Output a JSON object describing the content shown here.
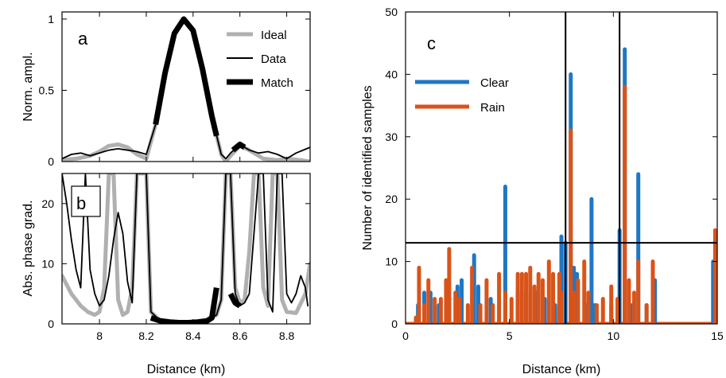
{
  "chart_data": [
    {
      "panel_label": "a",
      "type": "line",
      "xlabel": "",
      "ylabel": "Norm. ampl.",
      "xlim": [
        7.84,
        8.9
      ],
      "ylim": [
        0,
        1.05
      ],
      "xticks": [
        8,
        8.2,
        8.4,
        8.6,
        8.8
      ],
      "xtick_labels": [
        "",
        "",
        "",
        "",
        ""
      ],
      "yticks": [
        0,
        0.5,
        1
      ],
      "ytick_labels": [
        "0",
        "0.5",
        "1"
      ],
      "legend_position": "top-right",
      "series": [
        {
          "name": "Ideal",
          "color": "#b0b0b0",
          "style": "thick",
          "x": [
            7.84,
            7.9,
            7.96,
            8.0,
            8.04,
            8.08,
            8.12,
            8.16,
            8.2,
            8.24,
            8.28,
            8.32,
            8.36,
            8.4,
            8.44,
            8.48,
            8.52,
            8.54,
            8.56,
            8.6,
            8.64,
            8.7,
            8.76,
            8.8,
            8.86,
            8.9
          ],
          "y": [
            0.01,
            0.02,
            0.04,
            0.07,
            0.11,
            0.12,
            0.1,
            0.05,
            0.02,
            0.26,
            0.62,
            0.9,
            1.0,
            0.92,
            0.65,
            0.32,
            0.05,
            0.0,
            0.04,
            0.11,
            0.08,
            0.02,
            0.01,
            0.02,
            0.01,
            0.0
          ]
        },
        {
          "name": "Data",
          "color": "#000000",
          "style": "thin",
          "x": [
            7.84,
            7.88,
            7.92,
            7.96,
            8.0,
            8.04,
            8.08,
            8.12,
            8.16,
            8.2,
            8.24,
            8.28,
            8.32,
            8.36,
            8.4,
            8.44,
            8.48,
            8.52,
            8.54,
            8.56,
            8.6,
            8.64,
            8.68,
            8.72,
            8.76,
            8.8,
            8.84,
            8.9
          ],
          "y": [
            0.02,
            0.05,
            0.06,
            0.04,
            0.06,
            0.08,
            0.09,
            0.08,
            0.07,
            0.05,
            0.26,
            0.62,
            0.9,
            1.0,
            0.92,
            0.65,
            0.32,
            0.05,
            0.02,
            0.06,
            0.12,
            0.08,
            0.06,
            0.07,
            0.05,
            0.02,
            0.06,
            0.1
          ]
        },
        {
          "name": "Match",
          "color": "#000000",
          "style": "bold",
          "segments": [
            {
              "x": [
                8.24,
                8.28,
                8.32,
                8.36,
                8.4,
                8.44,
                8.48,
                8.5
              ],
              "y": [
                0.26,
                0.62,
                0.9,
                1.0,
                0.92,
                0.65,
                0.32,
                0.18
              ]
            },
            {
              "x": [
                8.57,
                8.6,
                8.62
              ],
              "y": [
                0.08,
                0.12,
                0.1
              ]
            }
          ]
        }
      ]
    },
    {
      "panel_label": "b",
      "type": "line",
      "xlabel": "Distance (km)",
      "ylabel": "Abs. phase grad.",
      "xlim": [
        7.84,
        8.9
      ],
      "ylim": [
        0,
        25
      ],
      "xticks": [
        8,
        8.2,
        8.4,
        8.6,
        8.8
      ],
      "xtick_labels": [
        "8",
        "8.2",
        "8.4",
        "8.6",
        "8.8"
      ],
      "yticks": [
        0,
        10,
        20
      ],
      "ytick_labels": [
        "0",
        "10",
        "20"
      ],
      "series": [
        {
          "name": "Ideal",
          "color": "#b0b0b0",
          "style": "thick",
          "x": [
            7.84,
            7.88,
            7.92,
            7.95,
            7.98,
            8.0,
            8.02,
            8.04,
            8.06,
            8.08,
            8.1,
            8.12,
            8.14,
            8.16,
            8.18,
            8.2,
            8.22,
            8.26,
            8.3,
            8.34,
            8.38,
            8.42,
            8.46,
            8.5,
            8.52,
            8.54,
            8.56,
            8.58,
            8.6,
            8.62,
            8.64,
            8.66,
            8.68,
            8.7,
            8.72,
            8.74,
            8.76,
            8.78,
            8.8,
            8.84,
            8.88,
            8.9
          ],
          "y": [
            8,
            5,
            3,
            2,
            1.5,
            2,
            6,
            25,
            25,
            4,
            1.5,
            2,
            6,
            25,
            25,
            25,
            2,
            0.5,
            0.3,
            0.2,
            0.2,
            0.3,
            0.5,
            1.5,
            4,
            25,
            25,
            6,
            3.5,
            4,
            12,
            25,
            25,
            6,
            3,
            25,
            25,
            4,
            2,
            1.8,
            5,
            10
          ]
        },
        {
          "name": "Data",
          "color": "#000000",
          "style": "thin",
          "x": [
            7.84,
            7.86,
            7.88,
            7.9,
            7.92,
            7.94,
            7.96,
            7.98,
            8.0,
            8.02,
            8.04,
            8.06,
            8.08,
            8.1,
            8.12,
            8.14,
            8.16,
            8.18,
            8.2,
            8.22,
            8.26,
            8.3,
            8.34,
            8.38,
            8.42,
            8.46,
            8.5,
            8.52,
            8.54,
            8.56,
            8.58,
            8.6,
            8.62,
            8.64,
            8.66,
            8.68,
            8.7,
            8.72,
            8.74,
            8.76,
            8.78,
            8.8,
            8.82,
            8.84,
            8.86,
            8.88,
            8.89
          ],
          "y": [
            25,
            20,
            14,
            9,
            6,
            25,
            9,
            5,
            3,
            4,
            8,
            14,
            18.5,
            15,
            7,
            3.5,
            25,
            25,
            25,
            2,
            0.5,
            0.3,
            0.2,
            0.2,
            0.3,
            0.5,
            1.5,
            4,
            25,
            25,
            5,
            3,
            3.5,
            5,
            15,
            25,
            25,
            4,
            2,
            25,
            25,
            5,
            3.5,
            5,
            8,
            6,
            3
          ]
        },
        {
          "name": "Match",
          "color": "#000000",
          "style": "bold",
          "segments": [
            {
              "x": [
                8.22,
                8.26,
                8.3,
                8.34,
                8.38,
                8.42,
                8.46,
                8.48,
                8.5
              ],
              "y": [
                1.0,
                0.5,
                0.3,
                0.2,
                0.2,
                0.3,
                0.5,
                1.0,
                6.0
              ]
            },
            {
              "x": [
                8.56,
                8.58,
                8.6
              ],
              "y": [
                5,
                3.5,
                3
              ]
            }
          ]
        }
      ]
    },
    {
      "panel_label": "c",
      "type": "bar",
      "xlabel": "Distance (km)",
      "ylabel": "Number of identified samples",
      "xlim": [
        0,
        15
      ],
      "ylim": [
        0,
        50
      ],
      "xticks": [
        0,
        5,
        10,
        15
      ],
      "xtick_labels": [
        "0",
        "5",
        "10",
        "15"
      ],
      "yticks": [
        0,
        10,
        20,
        30,
        40,
        50
      ],
      "ytick_labels": [
        "0",
        "10",
        "20",
        "30",
        "40",
        "50"
      ],
      "legend_position": "top-left",
      "reference_lines": {
        "vertical_x": [
          7.7,
          10.3
        ],
        "horizontal_y": [
          13
        ]
      },
      "series": [
        {
          "name": "Clear",
          "color": "#1f77c4",
          "x": [
            0.6,
            0.9,
            1.2,
            1.6,
            2.1,
            2.5,
            2.7,
            3.3,
            3.5,
            4.1,
            4.8,
            5.4,
            5.8,
            6.3,
            6.7,
            7.2,
            7.5,
            7.7,
            7.95,
            8.1,
            8.25,
            8.7,
            8.95,
            9.1,
            9.9,
            10.3,
            10.55,
            10.9,
            11.2,
            11.6,
            12.0,
            14.8
          ],
          "values": [
            3,
            5,
            5,
            3,
            4,
            6,
            7,
            11,
            6,
            4,
            22,
            5,
            5,
            5,
            4,
            3,
            14,
            13,
            40,
            9,
            8,
            3,
            20,
            3,
            3,
            15,
            44,
            3,
            24,
            3,
            7,
            10
          ]
        },
        {
          "name": "Rain",
          "color": "#d95319",
          "x": [
            0.5,
            0.65,
            0.9,
            1.1,
            1.4,
            1.7,
            1.95,
            2.1,
            2.4,
            2.6,
            3.0,
            3.2,
            3.6,
            3.9,
            4.2,
            4.5,
            4.8,
            5.1,
            5.4,
            5.6,
            5.8,
            6.0,
            6.2,
            6.4,
            6.6,
            6.9,
            7.1,
            7.4,
            7.5,
            7.95,
            8.1,
            8.3,
            8.6,
            8.8,
            9.2,
            9.5,
            9.9,
            10.2,
            10.55,
            10.75,
            11.0,
            11.2,
            11.6,
            11.9,
            14.9
          ],
          "values": [
            1,
            9,
            3,
            7,
            4,
            4,
            7,
            12,
            5,
            4,
            3,
            9,
            3,
            7,
            3,
            8,
            5,
            4,
            8,
            8,
            8,
            9,
            6,
            8,
            7,
            10,
            8,
            8,
            5,
            31,
            5,
            7,
            10,
            5,
            3,
            4,
            6,
            4,
            38,
            7,
            5,
            10,
            3,
            10,
            15
          ]
        }
      ]
    }
  ]
}
